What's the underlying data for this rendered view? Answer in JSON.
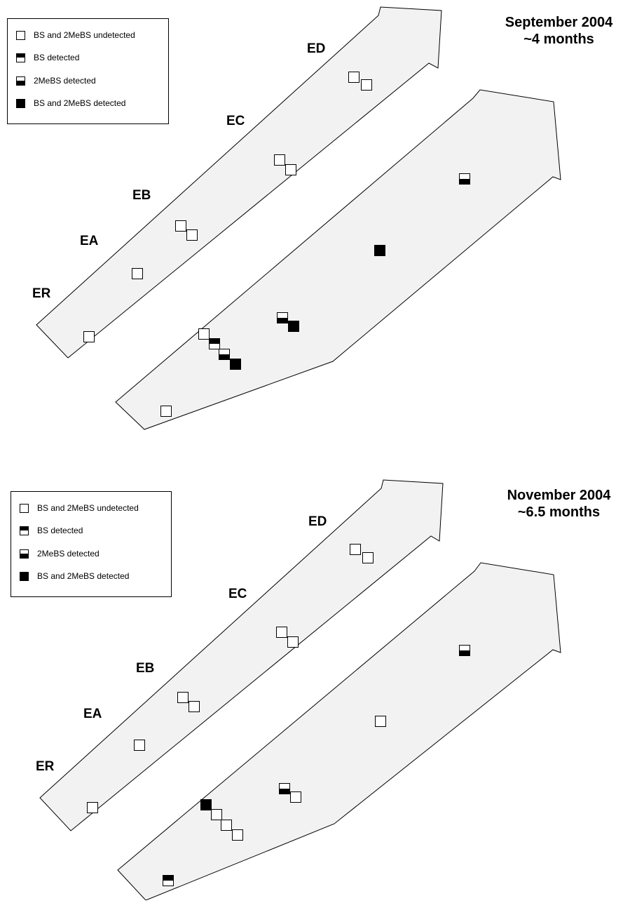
{
  "legend_items": [
    {
      "label": "BS and 2MeBS undetected",
      "marker": "empty"
    },
    {
      "label": "BS detected",
      "marker": "top-filled"
    },
    {
      "label": "2MeBS detected",
      "marker": "bottom-filled"
    },
    {
      "label": "BS and 2MeBS detected",
      "marker": "filled"
    }
  ],
  "zone_labels": [
    "ER",
    "EA",
    "EB",
    "EC",
    "ED"
  ],
  "panels": [
    {
      "title_line1": "September 2004",
      "title_line2": "~4 months",
      "upper_strip_samples": [
        "empty",
        "empty",
        "empty",
        "empty",
        "empty",
        "empty",
        "empty",
        "empty",
        "empty"
      ],
      "lower_strip_samples": [
        "empty",
        "empty",
        "top-filled",
        "bottom-filled",
        "filled",
        "bottom-filled",
        "filled",
        "filled",
        "bottom-filled"
      ]
    },
    {
      "title_line1": "November 2004",
      "title_line2": "~6.5 months",
      "upper_strip_samples": [
        "empty",
        "empty",
        "empty",
        "empty",
        "empty",
        "empty",
        "empty",
        "empty",
        "empty"
      ],
      "lower_strip_samples": [
        "top-filled",
        "filled",
        "empty",
        "empty",
        "empty",
        "bottom-filled",
        "empty",
        "empty",
        "bottom-filled"
      ]
    }
  ]
}
